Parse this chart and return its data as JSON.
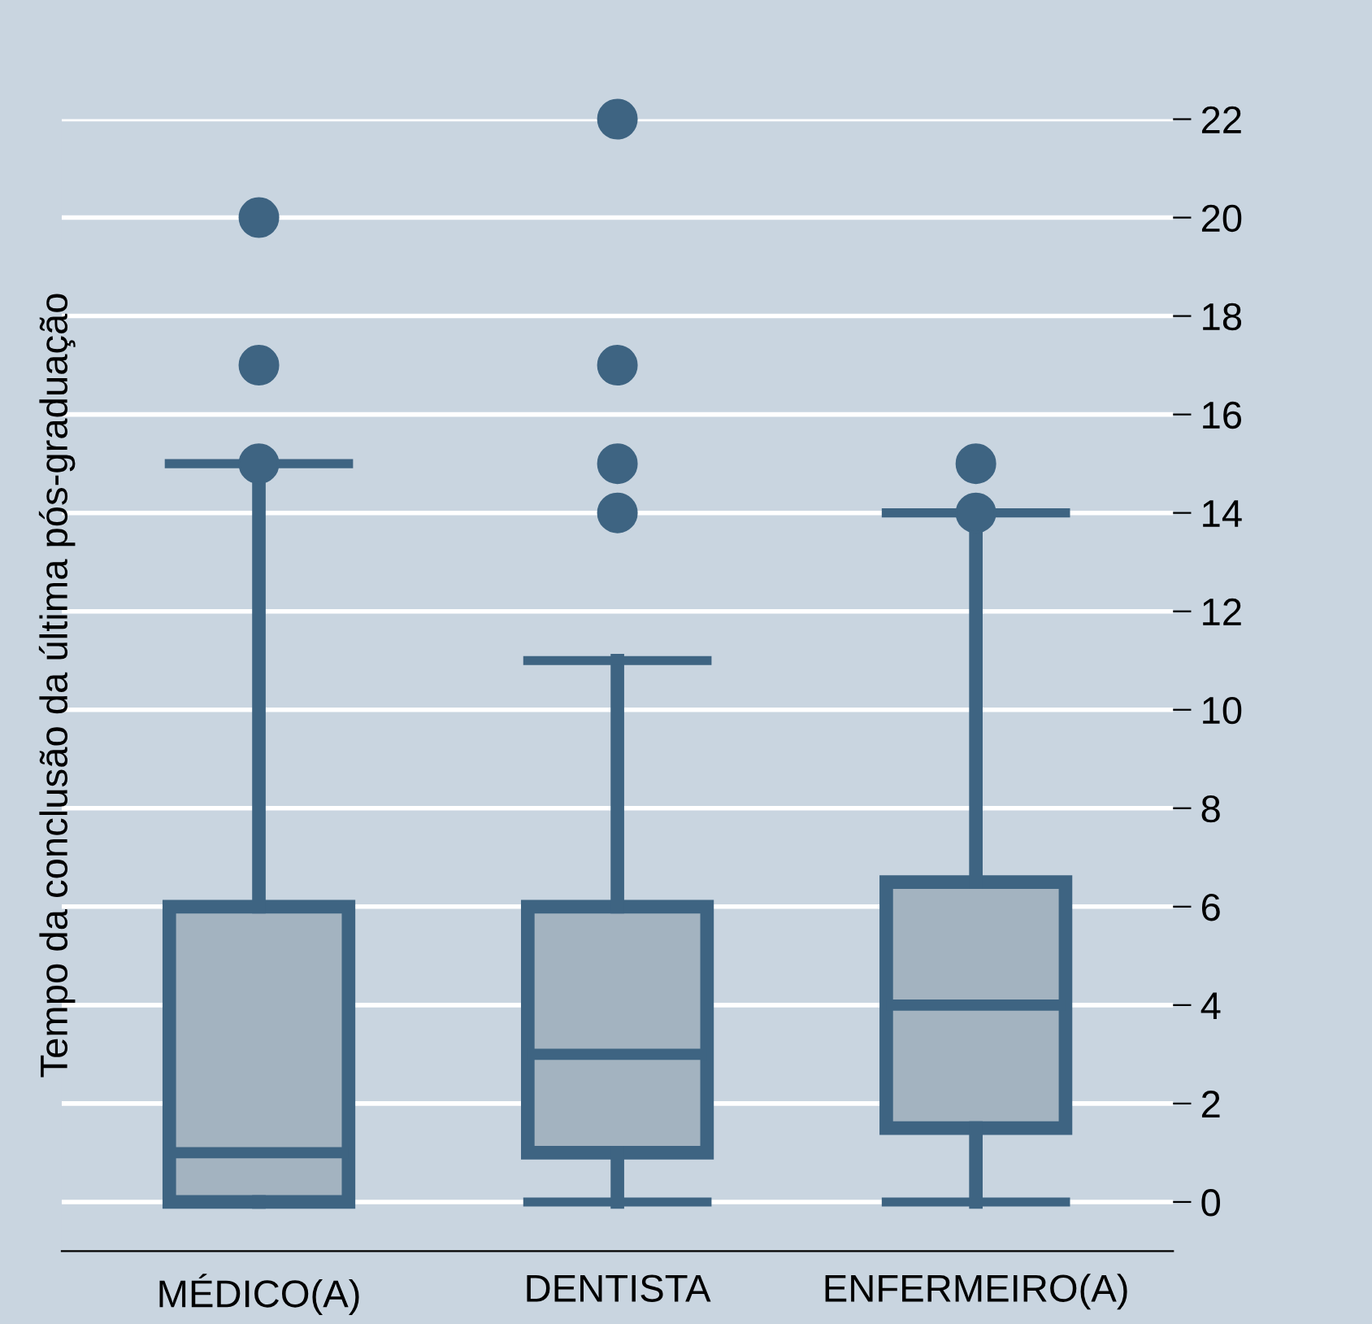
{
  "chart_data": {
    "type": "box",
    "ylabel": "Tempo da conclusão da última pós-graduação",
    "categories": [
      "MÉDICO(A)",
      "DENTISTA",
      "ENFERMEIRO(A)"
    ],
    "boxes": [
      {
        "low": 0,
        "q1": 0,
        "median": 1,
        "q3": 6,
        "high": 15,
        "outliers": [
          15,
          17,
          20
        ]
      },
      {
        "low": 0,
        "q1": 1,
        "median": 3,
        "q3": 6,
        "high": 11,
        "outliers": [
          14,
          15,
          17,
          22
        ]
      },
      {
        "low": 0,
        "q1": 1.5,
        "median": 4,
        "q3": 6.5,
        "high": 14,
        "outliers": [
          14,
          15
        ]
      }
    ],
    "color": "#a3b3c0",
    "ylim": [
      -1,
      22
    ],
    "yticks": [
      0,
      2,
      4,
      6,
      8,
      10,
      12,
      14,
      16,
      18,
      20,
      22
    ],
    "grid": "y",
    "legend": false
  }
}
